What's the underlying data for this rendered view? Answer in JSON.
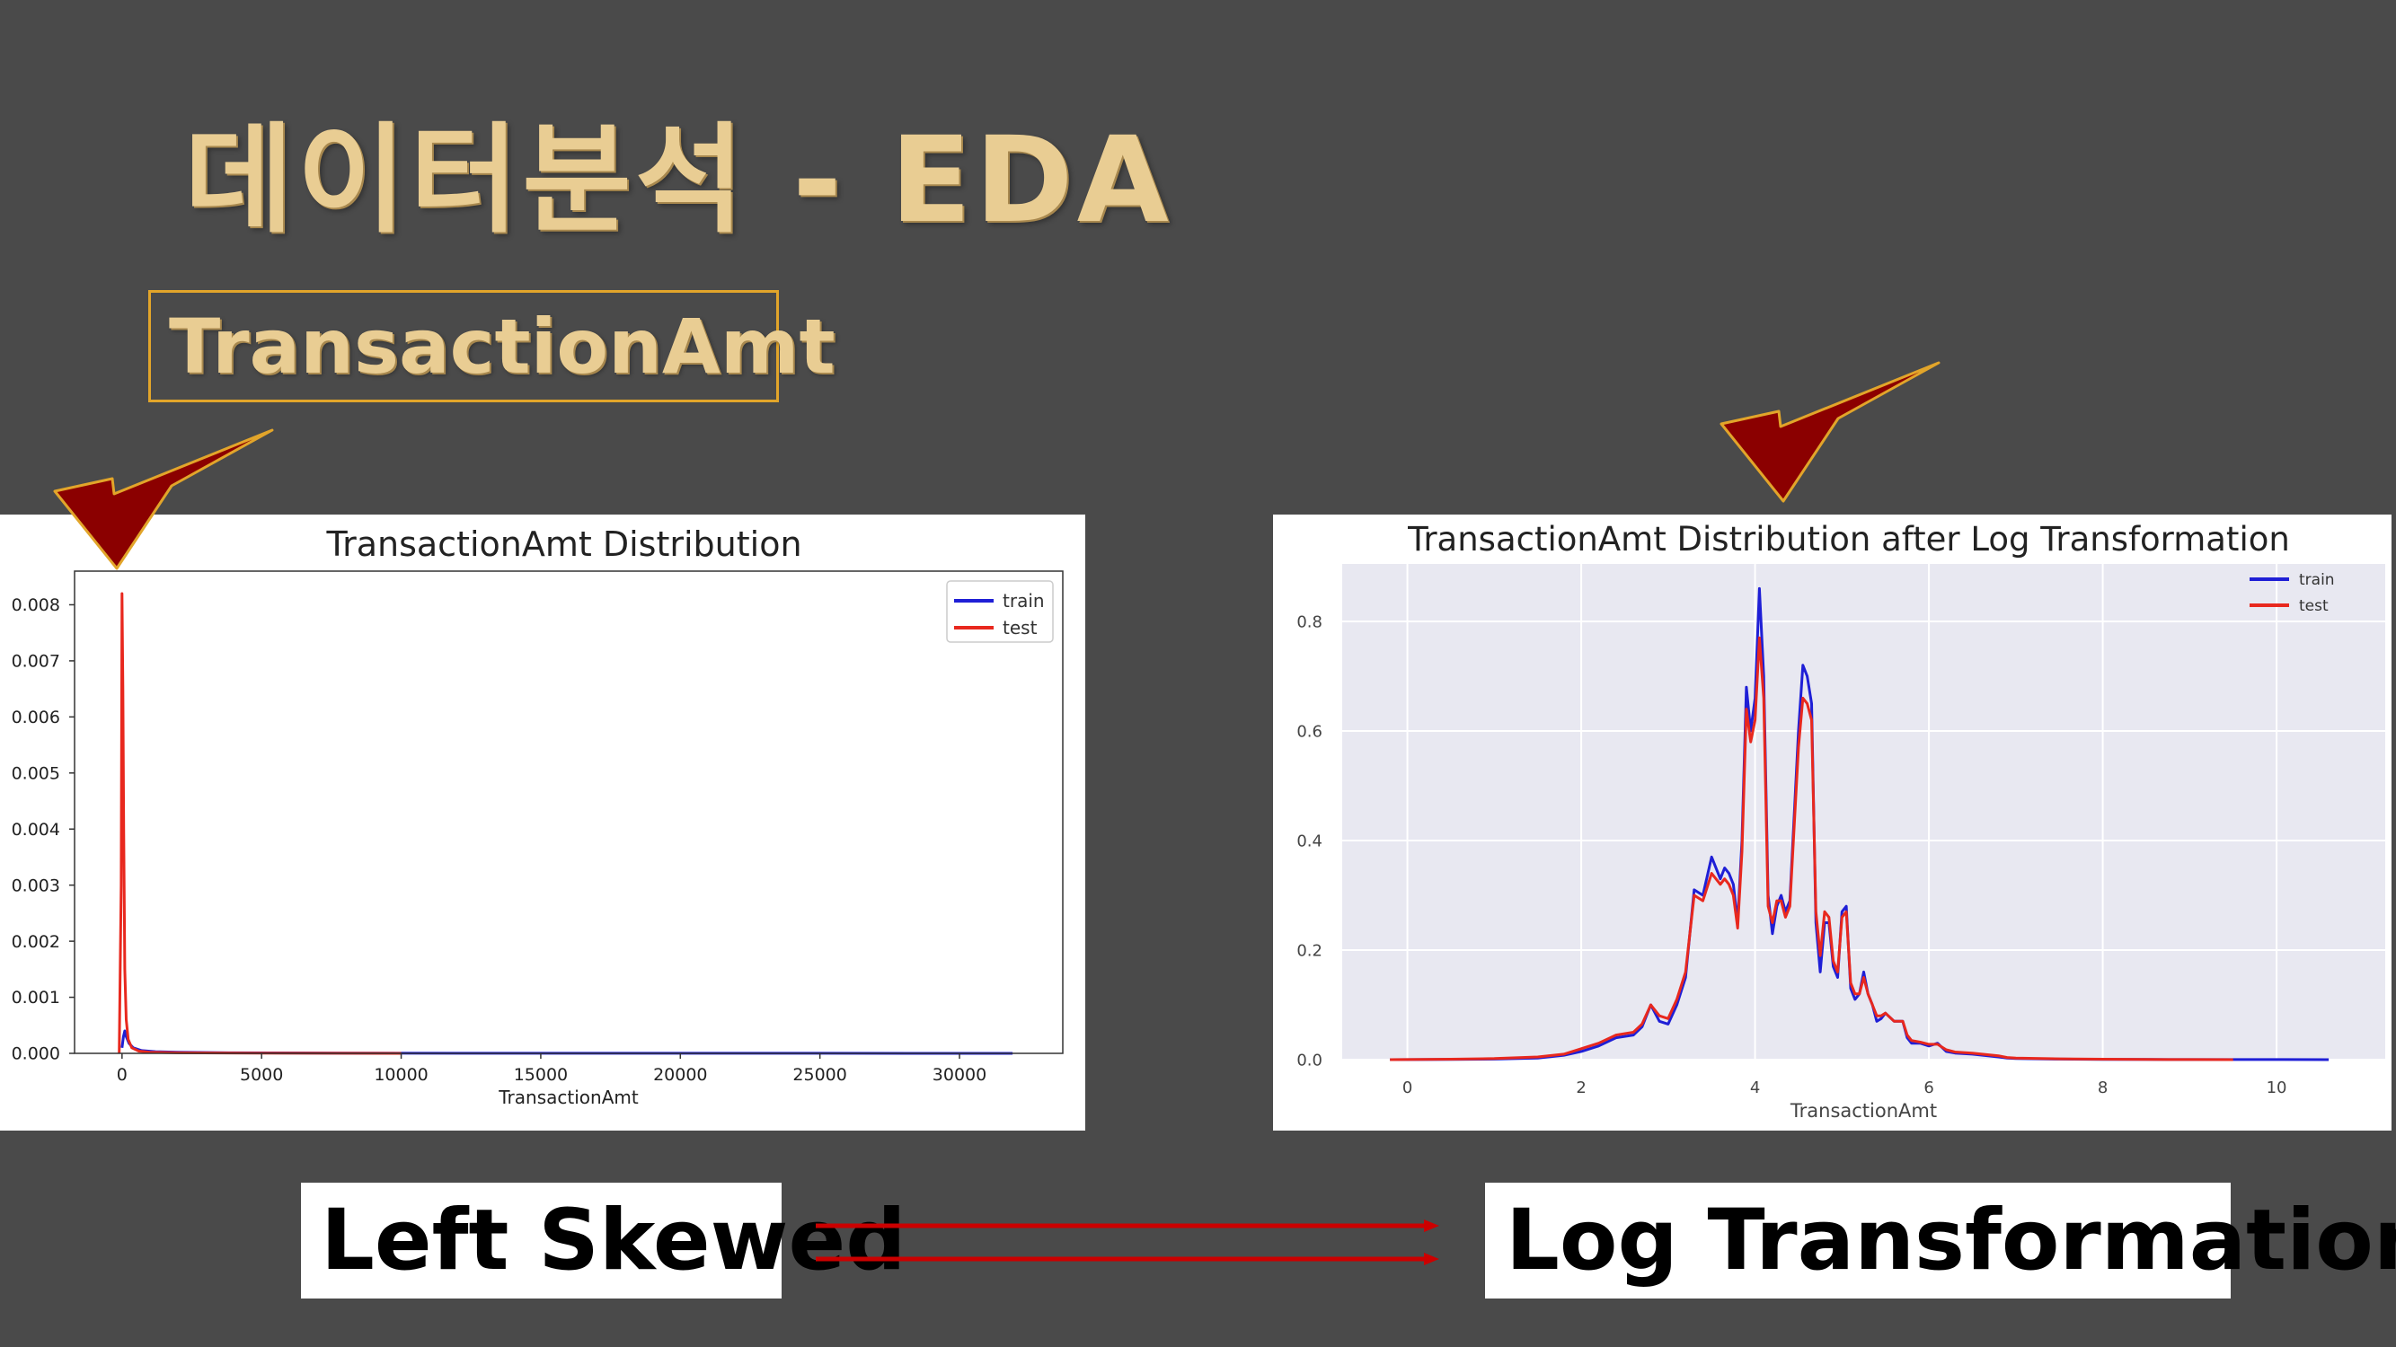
{
  "slide": {
    "title": "데이터분석 - EDA",
    "subtitle": "TransactionAmt",
    "left_label": "Left Skewed",
    "right_label": "Log Transformation"
  },
  "colors": {
    "background": "#4a4a4a",
    "title": "#e9cd93",
    "box_border": "#e2a52a",
    "check": "#8b0000",
    "arrow": "#cc0000"
  },
  "chart_data": [
    {
      "type": "line",
      "title": "TransactionAmt Distribution",
      "xlabel": "TransactionAmt",
      "ylabel": "",
      "xlim": [
        -1700,
        33700
      ],
      "ylim": [
        0,
        0.0086
      ],
      "xticks": [
        0,
        5000,
        10000,
        15000,
        20000,
        25000,
        30000
      ],
      "yticks": [
        0.0,
        0.001,
        0.002,
        0.003,
        0.004,
        0.005,
        0.006,
        0.007,
        0.008
      ],
      "grid": false,
      "legend": "top-right",
      "series": [
        {
          "name": "train",
          "color": "#1f1fd6",
          "x": [
            0,
            50,
            100,
            150,
            250,
            400,
            700,
            1200,
            2000,
            4000,
            8000,
            15000,
            25000,
            31900
          ],
          "y": [
            0.0001,
            0.0003,
            0.0004,
            0.0003,
            0.00018,
            0.0001,
            5e-05,
            3e-05,
            2e-05,
            1e-05,
            5e-06,
            2e-06,
            1e-06,
            0.0
          ]
        },
        {
          "name": "test",
          "color": "#e8281e",
          "x": [
            -100,
            -30,
            0,
            30,
            60,
            100,
            150,
            220,
            350,
            600,
            1000,
            2000,
            5000,
            10000
          ],
          "y": [
            0.0,
            0.003,
            0.0082,
            0.0065,
            0.004,
            0.0015,
            0.0006,
            0.00025,
            0.0001,
            4e-05,
            2e-05,
            1e-05,
            3e-06,
            0.0
          ]
        }
      ]
    },
    {
      "type": "line",
      "title": "TransactionAmt Distribution after Log Transformation",
      "xlabel": "TransactionAmt",
      "ylabel": "",
      "xlim": [
        -0.75,
        11.25
      ],
      "ylim": [
        0,
        0.905
      ],
      "xticks": [
        0,
        2,
        4,
        6,
        8,
        10
      ],
      "yticks": [
        0.0,
        0.2,
        0.4,
        0.6,
        0.8
      ],
      "grid": true,
      "legend": "top-right",
      "series": [
        {
          "name": "train",
          "color": "#1f1fd6",
          "x": [
            -0.2,
            0.5,
            1.0,
            1.5,
            1.8,
            2.0,
            2.2,
            2.4,
            2.6,
            2.7,
            2.8,
            2.9,
            3.0,
            3.1,
            3.2,
            3.3,
            3.4,
            3.5,
            3.6,
            3.65,
            3.7,
            3.75,
            3.8,
            3.85,
            3.9,
            3.95,
            4.0,
            4.05,
            4.1,
            4.15,
            4.2,
            4.25,
            4.3,
            4.35,
            4.4,
            4.5,
            4.55,
            4.6,
            4.65,
            4.7,
            4.75,
            4.8,
            4.85,
            4.9,
            4.95,
            5.0,
            5.05,
            5.1,
            5.15,
            5.2,
            5.25,
            5.3,
            5.35,
            5.4,
            5.45,
            5.5,
            5.6,
            5.7,
            5.75,
            5.8,
            5.9,
            6.0,
            6.1,
            6.2,
            6.3,
            6.5,
            6.8,
            6.9,
            7.0,
            7.5,
            8.0,
            8.5,
            9.0,
            10.0,
            10.6
          ],
          "y": [
            0,
            0.0005,
            0.001,
            0.003,
            0.008,
            0.015,
            0.025,
            0.04,
            0.045,
            0.06,
            0.1,
            0.07,
            0.065,
            0.1,
            0.15,
            0.31,
            0.3,
            0.37,
            0.33,
            0.35,
            0.34,
            0.32,
            0.25,
            0.4,
            0.68,
            0.6,
            0.66,
            0.86,
            0.7,
            0.3,
            0.23,
            0.28,
            0.3,
            0.27,
            0.29,
            0.6,
            0.72,
            0.7,
            0.65,
            0.25,
            0.16,
            0.25,
            0.25,
            0.17,
            0.15,
            0.27,
            0.28,
            0.13,
            0.11,
            0.12,
            0.16,
            0.12,
            0.1,
            0.07,
            0.075,
            0.085,
            0.07,
            0.07,
            0.04,
            0.03,
            0.03,
            0.025,
            0.03,
            0.015,
            0.012,
            0.01,
            0.005,
            0.003,
            0.002,
            0.001,
            0.0005,
            0.0003,
            0.0002,
            0.0001,
            0.0
          ]
        },
        {
          "name": "test",
          "color": "#e8281e",
          "x": [
            -0.2,
            0.5,
            1.0,
            1.5,
            1.8,
            2.0,
            2.2,
            2.4,
            2.6,
            2.7,
            2.8,
            2.9,
            3.0,
            3.1,
            3.2,
            3.3,
            3.4,
            3.5,
            3.6,
            3.65,
            3.7,
            3.75,
            3.8,
            3.85,
            3.9,
            3.95,
            4.0,
            4.05,
            4.1,
            4.15,
            4.2,
            4.25,
            4.3,
            4.35,
            4.4,
            4.5,
            4.55,
            4.6,
            4.65,
            4.7,
            4.75,
            4.8,
            4.85,
            4.9,
            4.95,
            5.0,
            5.05,
            5.1,
            5.15,
            5.2,
            5.25,
            5.3,
            5.35,
            5.4,
            5.45,
            5.5,
            5.6,
            5.7,
            5.75,
            5.8,
            5.9,
            6.0,
            6.1,
            6.2,
            6.3,
            6.5,
            6.8,
            6.9,
            7.0,
            7.5,
            8.0,
            8.5,
            9.0,
            9.5
          ],
          "y": [
            0,
            0.0008,
            0.002,
            0.005,
            0.01,
            0.02,
            0.03,
            0.045,
            0.05,
            0.065,
            0.1,
            0.08,
            0.075,
            0.11,
            0.16,
            0.3,
            0.29,
            0.34,
            0.32,
            0.33,
            0.32,
            0.3,
            0.24,
            0.38,
            0.64,
            0.58,
            0.62,
            0.77,
            0.66,
            0.28,
            0.25,
            0.29,
            0.29,
            0.26,
            0.28,
            0.57,
            0.66,
            0.65,
            0.62,
            0.27,
            0.19,
            0.27,
            0.26,
            0.18,
            0.16,
            0.26,
            0.27,
            0.14,
            0.12,
            0.12,
            0.15,
            0.12,
            0.1,
            0.08,
            0.08,
            0.085,
            0.07,
            0.07,
            0.045,
            0.035,
            0.032,
            0.028,
            0.028,
            0.018,
            0.014,
            0.012,
            0.007,
            0.004,
            0.003,
            0.0015,
            0.0008,
            0.0004,
            0.0002,
            0.0
          ]
        }
      ]
    }
  ]
}
